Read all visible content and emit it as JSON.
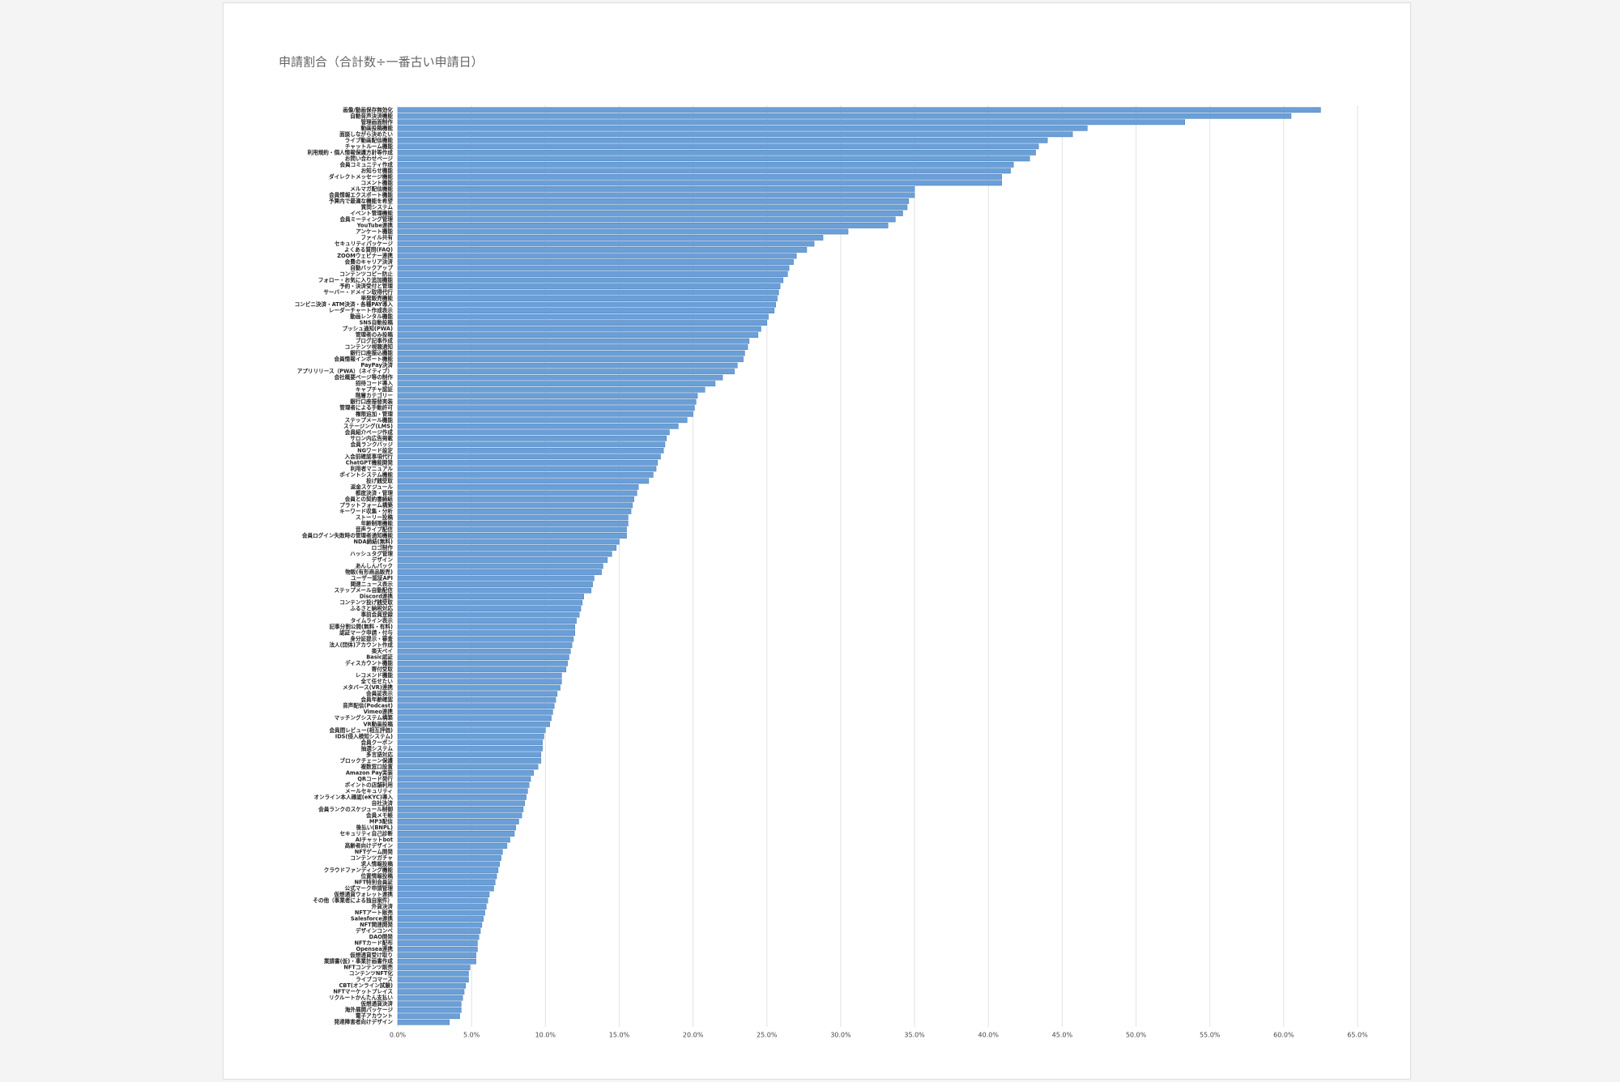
{
  "chart_data": {
    "type": "bar",
    "orientation": "horizontal",
    "title": "申請割合（合計数÷一番古い申請日）",
    "color": "#6a9fd8",
    "categories": [
      "画像/動画保存無効化",
      "自動音声決済機能",
      "管理画面制作",
      "動画投稿機能",
      "面談しながら決めたい",
      "ライブ動画配信機能",
      "チャットルーム機能",
      "利用規約・個人情報保護方針等作成",
      "お問い合わせページ",
      "会員コミュニティ作成",
      "お知らせ機能",
      "ダイレクトメッセージ機能",
      "コメント機能",
      "メルマガ配信機能",
      "会員情報エクスポート機能",
      "予算内で最適な機能を希望",
      "質問システム",
      "イベント管理機能",
      "会員ミーティング管理",
      "YouTube連携",
      "アンケート機能",
      "ファイル共有",
      "セキュリティパッケージ",
      "よくある質問(FAQ)",
      "ZOOMウェビナー連携",
      "会費のキャリア決済",
      "自動バックアップ",
      "コンテンツコピー防止",
      "フォロー・お気に入り追加機能",
      "予約・決済受付と管理",
      "サーバー・ドメイン取得代行",
      "単発販売機能",
      "コンビニ決済・ATM決済・各種PAY導入",
      "レーダーチャート作成表示",
      "動画レンタル機能",
      "SNS自動投稿",
      "プッシュ通知(PWA)",
      "管理者のみ投稿",
      "ブログ記事作成",
      "コンテンツ視聴通知",
      "銀行口座振込機能",
      "会員情報インポート機能",
      "PayPay決済",
      "アプリリリース（PWA）（ネイティブ）",
      "会社概要ページ等の制作",
      "招待コード導入",
      "キャプチャ認証",
      "階層カテゴリー",
      "銀行口座振替実装",
      "管理者による手動許可",
      "権限追加・管理",
      "ステップメール機能",
      "ステージング(LMS)",
      "会員紹介ページ作成",
      "サロン内広告掲載",
      "会員ランクバッジ",
      "NGワード設定",
      "入会前確認事項代行",
      "ChatGPT機能開発",
      "利用者マニュアル",
      "ポイントシステム機能",
      "投げ銭受取",
      "返金スケジュール",
      "都度決済・管理",
      "会員との契約書締結",
      "プラットフォーム構築",
      "キーワード収集・分析",
      "ストーリー投稿",
      "年齢制限機能",
      "音声ライブ配信",
      "会員ログイン失敗時の管理者通知機能",
      "NDA締結(無料)",
      "ロゴ制作",
      "ハッシュタグ管理",
      "デザイン",
      "あんしんパック",
      "物販(有形商品販売)",
      "ユーザー認証API",
      "関連ニュース表示",
      "ステップメール自動配信",
      "Discord連携",
      "コンテンツ投げ銭受取",
      "ふるさと納税対応",
      "事前会員登録",
      "タイムライン表示",
      "記事分割公開(無料・有料)",
      "認証マーク申請・付与",
      "身分証提示・審査",
      "法人(団体)アカウント作成",
      "楽天ペイ",
      "Basic認証",
      "ディスカウント機能",
      "寄付受取",
      "レコメンド機能",
      "全て任せたい",
      "メタバース(VR)連携",
      "会員証表示",
      "会員年齢確認",
      "音声配信(Podcast)",
      "Vimeo連携",
      "マッチングシステム構築",
      "VR動画投稿",
      "会員間レビュー(相互評価)",
      "IDS(侵入検知システム)",
      "会員クーポン",
      "抽選システム",
      "多言語対応",
      "ブロックチェーン保護",
      "複数窓口設置",
      "Amazon Pay実装",
      "QRコード発行",
      "ポイントの店舗利用",
      "メールセキュリティ",
      "オンライン本人確認(eKYC)導入",
      "自社決済",
      "会員ランクのスケジュール制御",
      "会員メモ帳",
      "MP3配信",
      "後払い(BNPL)",
      "セキュリティ自己診断",
      "AIチャットbot",
      "高齢者向けデザイン",
      "NFTゲーム開発",
      "コンテンツガチャ",
      "求人情報投稿",
      "クラウドファンディング機能",
      "位置情報投稿",
      "NFT特別会員証",
      "公式マーク申請管理",
      "仮想通貨ウォレット連携",
      "その他（事業者による独自案件）",
      "外貨決済",
      "NFTアート販売",
      "Salesforce連携",
      "NFT関連開発",
      "デザインコンペ",
      "DAO開発",
      "NFTカード配布",
      "Opensea連携",
      "仮想通貨受け取り",
      "業請書(仮)・事業計画書作成",
      "NFTコンテンツ販売",
      "コンテンツNFT化",
      "ライブコマース",
      "CBT(オンライン試験)",
      "NFTマーケットプレイス",
      "リクルートかんたん支払い",
      "仮想通貨決済",
      "海外展開パッケージ",
      "電子アカウント",
      "発達障害者向けデザイン"
    ],
    "values": [
      62.5,
      60.5,
      53.3,
      46.7,
      45.7,
      44.0,
      43.4,
      43.2,
      42.8,
      41.7,
      41.5,
      40.9,
      40.9,
      35.0,
      35.0,
      34.6,
      34.5,
      34.2,
      33.7,
      33.2,
      30.5,
      28.8,
      28.2,
      27.7,
      27.0,
      26.8,
      26.5,
      26.4,
      26.1,
      25.9,
      25.8,
      25.7,
      25.6,
      25.5,
      25.1,
      25.0,
      24.6,
      24.4,
      23.8,
      23.7,
      23.5,
      23.4,
      23.0,
      22.8,
      22.0,
      21.5,
      20.8,
      20.3,
      20.2,
      20.1,
      20.0,
      19.6,
      19.0,
      18.4,
      18.2,
      18.1,
      18.0,
      17.8,
      17.6,
      17.5,
      17.3,
      17.0,
      16.3,
      16.2,
      16.0,
      15.9,
      15.8,
      15.6,
      15.6,
      15.5,
      15.5,
      15.0,
      14.8,
      14.5,
      14.2,
      13.9,
      13.8,
      13.3,
      13.2,
      13.1,
      12.6,
      12.5,
      12.4,
      12.3,
      12.1,
      12.0,
      12.0,
      11.9,
      11.8,
      11.7,
      11.6,
      11.5,
      11.4,
      11.1,
      11.1,
      11.0,
      10.8,
      10.7,
      10.6,
      10.5,
      10.4,
      10.3,
      10.0,
      9.9,
      9.8,
      9.8,
      9.7,
      9.7,
      9.5,
      9.2,
      9.0,
      8.9,
      8.8,
      8.7,
      8.6,
      8.5,
      8.4,
      8.2,
      8.0,
      7.9,
      7.6,
      7.4,
      7.1,
      7.0,
      6.9,
      6.8,
      6.7,
      6.6,
      6.5,
      6.2,
      6.1,
      6.0,
      5.9,
      5.8,
      5.7,
      5.6,
      5.5,
      5.4,
      5.4,
      5.3,
      5.3,
      4.9,
      4.8,
      4.8,
      4.6,
      4.5,
      4.4,
      4.3,
      4.3,
      4.2,
      3.5
    ],
    "xlim": [
      0,
      65
    ],
    "xticks": [
      {
        "value": 0,
        "label": "0.0%"
      },
      {
        "value": 5,
        "label": "5.0%"
      },
      {
        "value": 10,
        "label": "10.0%"
      },
      {
        "value": 15,
        "label": "15.0%"
      },
      {
        "value": 20,
        "label": "20.0%"
      },
      {
        "value": 25,
        "label": "25.0%"
      },
      {
        "value": 30,
        "label": "30.0%"
      },
      {
        "value": 35,
        "label": "35.0%"
      },
      {
        "value": 40,
        "label": "40.0%"
      },
      {
        "value": 45,
        "label": "45.0%"
      },
      {
        "value": 50,
        "label": "50.0%"
      },
      {
        "value": 55,
        "label": "55.0%"
      },
      {
        "value": 60,
        "label": "60.0%"
      },
      {
        "value": 65,
        "label": "65.0%"
      }
    ],
    "grid": true
  }
}
